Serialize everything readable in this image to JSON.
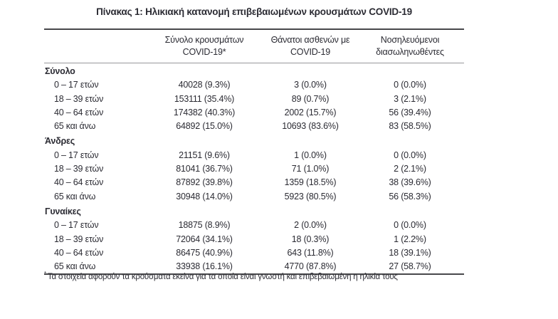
{
  "page": {
    "title": "Πίνακας 1: Ηλικιακή κατανομή επιβεβαιωμένων κρουσμάτων COVID-19"
  },
  "table": {
    "header": {
      "cases": "Σύνολο κρουσμάτων COVID-19*",
      "deaths": "Θάνατοι ασθενών με COVID-19",
      "intubated": "Νοσηλευόμενοι διασωληνωθέντες"
    },
    "groups": [
      {
        "label": "Σύνολο",
        "rows": [
          {
            "age": "0 – 17 ετών",
            "cases": "40028 (9.3%)",
            "deaths": "3 (0.0%)",
            "intubated": "0 (0.0%)"
          },
          {
            "age": "18 – 39 ετών",
            "cases": "153111 (35.4%)",
            "deaths": "89 (0.7%)",
            "intubated": "3 (2.1%)"
          },
          {
            "age": "40 – 64 ετών",
            "cases": "174382 (40.3%)",
            "deaths": "2002 (15.7%)",
            "intubated": "56 (39.4%)"
          },
          {
            "age": "65 και άνω",
            "cases": "64892 (15.0%)",
            "deaths": "10693 (83.6%)",
            "intubated": "83 (58.5%)"
          }
        ]
      },
      {
        "label": "Άνδρες",
        "rows": [
          {
            "age": "0 – 17 ετών",
            "cases": "21151 (9.6%)",
            "deaths": "1 (0.0%)",
            "intubated": "0 (0.0%)"
          },
          {
            "age": "18 – 39 ετών",
            "cases": "81041 (36.7%)",
            "deaths": "71 (1.0%)",
            "intubated": "2 (2.1%)"
          },
          {
            "age": "40 – 64 ετών",
            "cases": "87892 (39.8%)",
            "deaths": "1359 (18.5%)",
            "intubated": "38 (39.6%)"
          },
          {
            "age": "65 και άνω",
            "cases": "30948 (14.0%)",
            "deaths": "5923 (80.5%)",
            "intubated": "56 (58.3%)"
          }
        ]
      },
      {
        "label": "Γυναίκες",
        "rows": [
          {
            "age": "0 – 17 ετών",
            "cases": "18875 (8.9%)",
            "deaths": "2 (0.0%)",
            "intubated": "0 (0.0%)"
          },
          {
            "age": "18 – 39 ετών",
            "cases": "72064 (34.1%)",
            "deaths": "18 (0.3%)",
            "intubated": "1 (2.2%)"
          },
          {
            "age": "40 – 64 ετών",
            "cases": "86475 (40.9%)",
            "deaths": "643 (11.8%)",
            "intubated": "18 (39.1%)"
          },
          {
            "age": "65 και άνω",
            "cases": "33938 (16.1%)",
            "deaths": "4770 (87.8%)",
            "intubated": "27 (58.7%)"
          }
        ]
      }
    ],
    "footnote_marker": "*",
    "footnote": "Τα στοιχεία αφορούν τα κρούσματα εκείνα για τα οποία είναι γνωστή και επιβεβαιωμένη η ηλικία τους"
  },
  "colors": {
    "text": "#2b2b33",
    "rule_heavy": "#48484b",
    "rule_light": "#98989b",
    "background": "#ffffff"
  }
}
